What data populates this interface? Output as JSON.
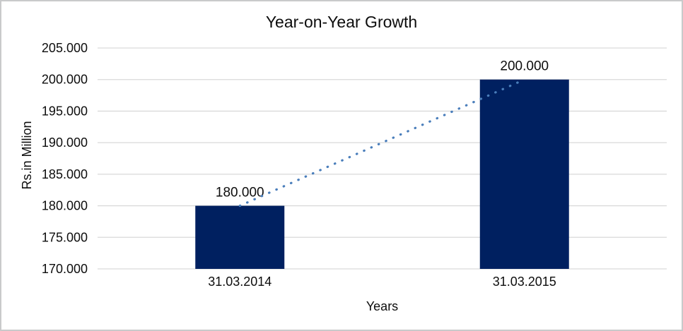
{
  "chart_data": {
    "type": "bar",
    "title": "Year-on-Year Growth",
    "xlabel": "Years",
    "ylabel": "Rs.in Million",
    "categories": [
      "31.03.2014",
      "31.03.2015"
    ],
    "values": [
      180000,
      200000
    ],
    "data_labels": [
      "180.000",
      "200.000"
    ],
    "ylim": [
      170000,
      205000
    ],
    "ytick_step": 5000,
    "ytick_labels": [
      "170.000",
      "175.000",
      "180.000",
      "185.000",
      "190.000",
      "195.000",
      "200.000",
      "205.000"
    ],
    "grid": true,
    "legend_position": "none",
    "bar_color": "#002060",
    "trendline": {
      "style": "dotted",
      "color": "#4A7EBB",
      "from_category": "31.03.2014",
      "from_value": 180000,
      "to_category": "31.03.2015",
      "to_value": 200000
    },
    "gridline_color": "#D9D9D9",
    "text_color": "#0d0d0d",
    "background_color": "#FFFFFF",
    "border_color": "#C9CACB"
  }
}
